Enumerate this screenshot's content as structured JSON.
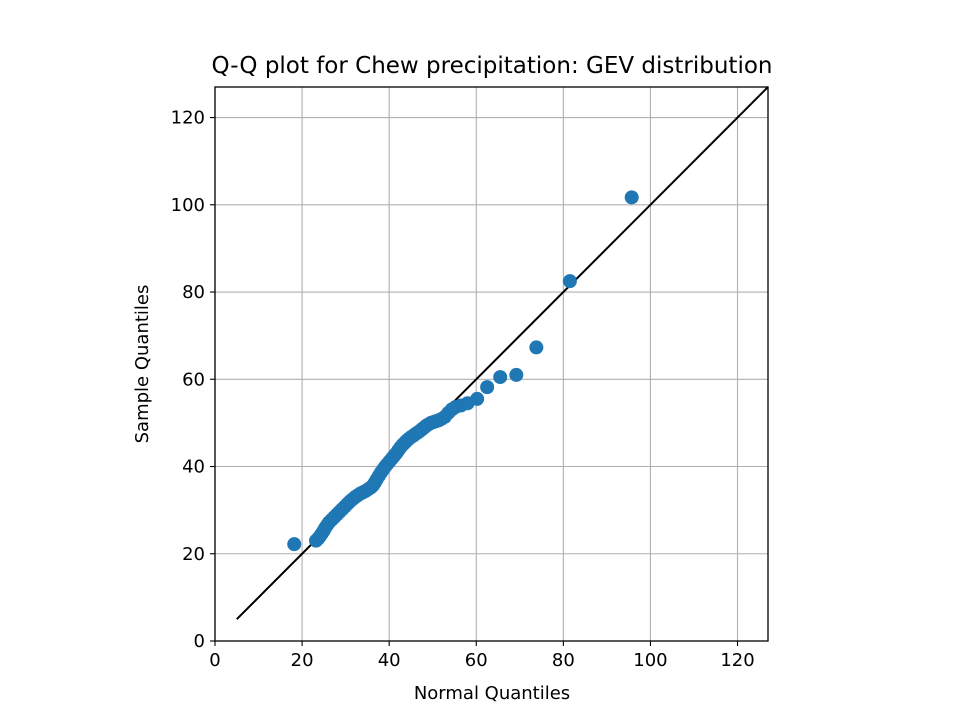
{
  "chart_data": {
    "type": "scatter",
    "title": "Q-Q plot for Chew precipitation: GEV distribution",
    "xlabel": "Normal Quantiles",
    "ylabel": "Sample Quantiles",
    "xlim": [
      0,
      127
    ],
    "ylim": [
      0,
      127
    ],
    "xticks": [
      0,
      20,
      40,
      60,
      80,
      100,
      120
    ],
    "yticks": [
      0,
      20,
      40,
      60,
      80,
      100,
      120
    ],
    "grid": true,
    "marker_color": "#1f77b4",
    "reference_line": {
      "color": "#000000",
      "from": [
        5,
        5
      ],
      "to": [
        127,
        127
      ]
    },
    "points": [
      [
        18.2,
        22.2
      ],
      [
        23.2,
        23.0
      ],
      [
        23.7,
        23.5
      ],
      [
        24.1,
        24.0
      ],
      [
        24.5,
        24.6
      ],
      [
        24.9,
        25.2
      ],
      [
        25.3,
        25.9
      ],
      [
        25.7,
        26.5
      ],
      [
        26.2,
        27.2
      ],
      [
        26.8,
        27.8
      ],
      [
        27.4,
        28.4
      ],
      [
        28.0,
        29.0
      ],
      [
        28.6,
        29.6
      ],
      [
        29.2,
        30.2
      ],
      [
        29.8,
        30.8
      ],
      [
        30.4,
        31.4
      ],
      [
        31.0,
        32.0
      ],
      [
        31.6,
        32.5
      ],
      [
        32.2,
        33.0
      ],
      [
        32.8,
        33.4
      ],
      [
        33.4,
        33.8
      ],
      [
        34.0,
        34.1
      ],
      [
        34.6,
        34.4
      ],
      [
        35.2,
        34.8
      ],
      [
        35.8,
        35.2
      ],
      [
        36.3,
        35.7
      ],
      [
        36.7,
        36.3
      ],
      [
        37.1,
        37.0
      ],
      [
        37.6,
        37.8
      ],
      [
        38.1,
        38.6
      ],
      [
        38.6,
        39.3
      ],
      [
        39.1,
        40.0
      ],
      [
        39.6,
        40.6
      ],
      [
        40.1,
        41.2
      ],
      [
        40.6,
        41.8
      ],
      [
        41.1,
        42.4
      ],
      [
        41.6,
        43.0
      ],
      [
        42.1,
        43.7
      ],
      [
        42.6,
        44.4
      ],
      [
        43.1,
        45.0
      ],
      [
        43.6,
        45.5
      ],
      [
        44.1,
        46.0
      ],
      [
        44.6,
        46.4
      ],
      [
        45.1,
        46.8
      ],
      [
        45.6,
        47.1
      ],
      [
        46.1,
        47.5
      ],
      [
        46.6,
        47.8
      ],
      [
        47.1,
        48.2
      ],
      [
        47.6,
        48.6
      ],
      [
        48.1,
        49.0
      ],
      [
        48.6,
        49.4
      ],
      [
        49.1,
        49.7
      ],
      [
        49.6,
        50.0
      ],
      [
        50.2,
        50.2
      ],
      [
        50.8,
        50.4
      ],
      [
        51.4,
        50.6
      ],
      [
        52.0,
        50.9
      ],
      [
        52.8,
        51.4
      ],
      [
        53.6,
        52.3
      ],
      [
        54.4,
        53.1
      ],
      [
        55.2,
        53.6
      ],
      [
        56.5,
        54.0
      ],
      [
        58.0,
        54.5
      ],
      [
        60.2,
        55.5
      ],
      [
        62.5,
        58.2
      ],
      [
        65.5,
        60.5
      ],
      [
        69.2,
        61.0
      ],
      [
        73.8,
        67.3
      ],
      [
        81.5,
        82.5
      ],
      [
        95.7,
        101.7
      ]
    ]
  }
}
